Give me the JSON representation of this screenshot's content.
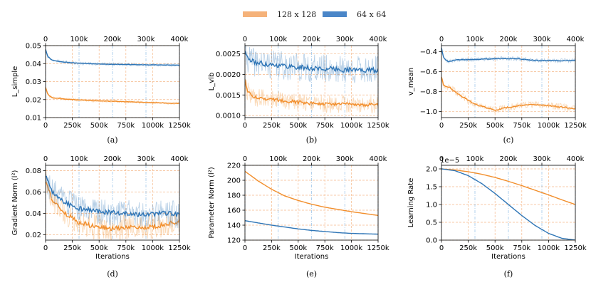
{
  "legend": {
    "series_a": "128 x 128",
    "series_b": "64 x 64"
  },
  "colors": {
    "series_a": "#f28e2b",
    "series_b": "#2e75b6",
    "grid": "#f5b98a",
    "dash_blue": "#9fc5e8"
  },
  "chart_data": [
    {
      "type": "line",
      "caption": "(a)",
      "ylabel": "L_simple",
      "xlabel": "",
      "xlim": [
        0,
        1250000
      ],
      "ylim": [
        0.01,
        0.05
      ],
      "x_ticks": [
        0,
        250000,
        500000,
        750000,
        1000000,
        1250000
      ],
      "x_tick_labels": [
        "0",
        "250k",
        "500k",
        "750k",
        "1000k",
        "1250k"
      ],
      "top_ticks": [
        0,
        100000,
        200000,
        300000,
        400000
      ],
      "top_tick_labels": [
        "0",
        "100k",
        "200k",
        "300k",
        "400k"
      ],
      "y_ticks": [
        0.01,
        0.02,
        0.03,
        0.04,
        0.05
      ],
      "y_tick_labels": [
        "0.01",
        "0.02",
        "0.03",
        "0.04",
        "0.05"
      ],
      "noise": [
        0.0008,
        0.0008
      ],
      "series": [
        {
          "name": "128 x 128",
          "x": [
            0,
            20000,
            60000,
            150000,
            300000,
            500000,
            750000,
            1000000,
            1250000
          ],
          "values": [
            0.027,
            0.023,
            0.021,
            0.0205,
            0.0198,
            0.0193,
            0.0188,
            0.0183,
            0.0178
          ]
        },
        {
          "name": "64 x 64",
          "x": [
            0,
            20000,
            60000,
            150000,
            300000,
            500000,
            750000,
            1000000,
            1250000
          ],
          "values": [
            0.048,
            0.044,
            0.042,
            0.041,
            0.0402,
            0.0398,
            0.0395,
            0.0393,
            0.0391
          ]
        }
      ]
    },
    {
      "type": "line",
      "caption": "(b)",
      "ylabel": "L_vlb",
      "xlabel": "",
      "xlim": [
        0,
        1250000
      ],
      "ylim": [
        0.00095,
        0.0027
      ],
      "x_ticks": [
        0,
        250000,
        500000,
        750000,
        1000000,
        1250000
      ],
      "x_tick_labels": [
        "0",
        "250k",
        "500k",
        "750k",
        "1000k",
        "1250k"
      ],
      "top_ticks": [
        0,
        100000,
        200000,
        300000,
        400000
      ],
      "top_tick_labels": [
        "0",
        "100k",
        "200k",
        "300k",
        "400k"
      ],
      "y_ticks": [
        0.001,
        0.0015,
        0.002,
        0.0025
      ],
      "y_tick_labels": [
        "0.0010",
        "0.0015",
        "0.0020",
        "0.0025"
      ],
      "noise": [
        0.00022,
        0.00035
      ],
      "series": [
        {
          "name": "128 x 128",
          "x": [
            0,
            20000,
            80000,
            200000,
            400000,
            600000,
            800000,
            1000000,
            1250000
          ],
          "values": [
            0.0019,
            0.0016,
            0.00145,
            0.0014,
            0.00135,
            0.0013,
            0.00128,
            0.00127,
            0.00126
          ]
        },
        {
          "name": "64 x 64",
          "x": [
            0,
            20000,
            80000,
            200000,
            400000,
            600000,
            800000,
            1000000,
            1250000
          ],
          "values": [
            0.0026,
            0.0024,
            0.0023,
            0.00225,
            0.0022,
            0.00215,
            0.00213,
            0.00211,
            0.0021
          ]
        }
      ]
    },
    {
      "type": "line",
      "caption": "(c)",
      "ylabel": "v_mean",
      "xlabel": "",
      "xlim": [
        0,
        1250000
      ],
      "ylim": [
        -1.06,
        -0.34
      ],
      "x_ticks": [
        0,
        250000,
        500000,
        750000,
        1000000,
        1250000
      ],
      "x_tick_labels": [
        "0",
        "250k",
        "500k",
        "750k",
        "1000k",
        "1250k"
      ],
      "top_ticks": [
        0,
        100000,
        200000,
        300000,
        400000
      ],
      "top_tick_labels": [
        "0",
        "100k",
        "200k",
        "300k",
        "400k"
      ],
      "y_ticks": [
        -1.0,
        -0.8,
        -0.6,
        -0.4
      ],
      "y_tick_labels": [
        "−1.0",
        "−0.8",
        "−0.6",
        "−0.4"
      ],
      "noise": [
        0.035,
        0.02
      ],
      "series": [
        {
          "name": "128 x 128",
          "x": [
            0,
            20000,
            80000,
            150000,
            300000,
            500000,
            600000,
            800000,
            1000000,
            1250000
          ],
          "values": [
            -0.65,
            -0.74,
            -0.76,
            -0.82,
            -0.92,
            -0.99,
            -0.96,
            -0.93,
            -0.94,
            -0.97
          ]
        },
        {
          "name": "64 x 64",
          "x": [
            0,
            20000,
            60000,
            150000,
            300000,
            500000,
            700000,
            900000,
            1250000
          ],
          "values": [
            -0.36,
            -0.46,
            -0.5,
            -0.48,
            -0.48,
            -0.47,
            -0.47,
            -0.49,
            -0.49
          ]
        }
      ]
    },
    {
      "type": "line",
      "caption": "(d)",
      "ylabel": "Gradient Norm (l²)",
      "xlabel": "Iterations",
      "xlim": [
        0,
        1250000
      ],
      "ylim": [
        0.015,
        0.085
      ],
      "x_ticks": [
        0,
        250000,
        500000,
        750000,
        1000000,
        1250000
      ],
      "x_tick_labels": [
        "0",
        "250k",
        "500k",
        "750k",
        "1000k",
        "1250k"
      ],
      "top_ticks": [
        0,
        100000,
        200000,
        300000,
        400000
      ],
      "top_tick_labels": [
        "0",
        "100k",
        "200k",
        "300k",
        "400k"
      ],
      "y_ticks": [
        0.02,
        0.04,
        0.06,
        0.08
      ],
      "y_tick_labels": [
        "0.02",
        "0.04",
        "0.06",
        "0.08"
      ],
      "noise": [
        0.012,
        0.013
      ],
      "series": [
        {
          "name": "128 x 128",
          "x": [
            0,
            50000,
            150000,
            300000,
            450000,
            600000,
            750000,
            900000,
            1100000,
            1250000
          ],
          "values": [
            0.07,
            0.055,
            0.042,
            0.032,
            0.028,
            0.026,
            0.027,
            0.026,
            0.029,
            0.033
          ]
        },
        {
          "name": "64 x 64",
          "x": [
            0,
            50000,
            150000,
            300000,
            500000,
            700000,
            900000,
            1100000,
            1250000
          ],
          "values": [
            0.075,
            0.062,
            0.052,
            0.045,
            0.042,
            0.04,
            0.039,
            0.04,
            0.039
          ]
        }
      ]
    },
    {
      "type": "line",
      "caption": "(e)",
      "ylabel": "Parameter Norm (l²)",
      "xlabel": "Iterations",
      "xlim": [
        0,
        1250000
      ],
      "ylim": [
        120,
        220
      ],
      "x_ticks": [
        0,
        250000,
        500000,
        750000,
        1000000,
        1250000
      ],
      "x_tick_labels": [
        "0",
        "250k",
        "500k",
        "750k",
        "1000k",
        "1250k"
      ],
      "top_ticks": [
        0,
        100000,
        200000,
        300000,
        400000
      ],
      "top_tick_labels": [
        "0",
        "100k",
        "200k",
        "300k",
        "400k"
      ],
      "y_ticks": [
        120,
        140,
        160,
        180,
        200,
        220
      ],
      "y_tick_labels": [
        "120",
        "140",
        "160",
        "180",
        "200",
        "220"
      ],
      "noise": [
        0,
        0
      ],
      "series": [
        {
          "name": "128 x 128",
          "x": [
            0,
            125000,
            250000,
            375000,
            500000,
            625000,
            750000,
            875000,
            1000000,
            1125000,
            1250000
          ],
          "values": [
            212,
            199,
            188,
            179,
            173,
            168,
            164,
            161,
            158,
            155.5,
            153
          ]
        },
        {
          "name": "64 x 64",
          "x": [
            0,
            125000,
            250000,
            375000,
            500000,
            625000,
            750000,
            875000,
            1000000,
            1125000,
            1250000
          ],
          "values": [
            146,
            143,
            140,
            137.5,
            135,
            133,
            131.5,
            130,
            129,
            128.5,
            128
          ]
        }
      ]
    },
    {
      "type": "line",
      "caption": "(f)",
      "ylabel": "Learning Rate",
      "xlabel": "Iterations",
      "offset_text": "1e−5",
      "xlim": [
        0,
        1250000
      ],
      "ylim": [
        0,
        2.1
      ],
      "x_ticks": [
        0,
        250000,
        500000,
        750000,
        1000000,
        1250000
      ],
      "x_tick_labels": [
        "0",
        "250k",
        "500k",
        "750k",
        "1000k",
        "1250k"
      ],
      "top_ticks": [
        0,
        100000,
        200000,
        300000,
        400000
      ],
      "top_tick_labels": [
        "0",
        "100k",
        "200k",
        "300k",
        "400k"
      ],
      "y_ticks": [
        0,
        0.5,
        1.0,
        1.5,
        2.0
      ],
      "y_tick_labels": [
        "0.0",
        "0.5",
        "1.0",
        "1.5",
        "2.0"
      ],
      "noise": [
        0,
        0
      ],
      "series": [
        {
          "name": "128 x 128",
          "x": [
            0,
            125000,
            250000,
            375000,
            500000,
            625000,
            750000,
            875000,
            1000000,
            1125000,
            1250000
          ],
          "values": [
            2.0,
            1.97,
            1.92,
            1.85,
            1.76,
            1.65,
            1.53,
            1.4,
            1.27,
            1.13,
            1.0
          ]
        },
        {
          "name": "64 x 64",
          "x": [
            0,
            125000,
            250000,
            375000,
            500000,
            625000,
            750000,
            875000,
            1000000,
            1125000,
            1250000
          ],
          "values": [
            2.0,
            1.95,
            1.81,
            1.59,
            1.31,
            1.0,
            0.69,
            0.41,
            0.19,
            0.05,
            0.0
          ]
        }
      ]
    }
  ]
}
